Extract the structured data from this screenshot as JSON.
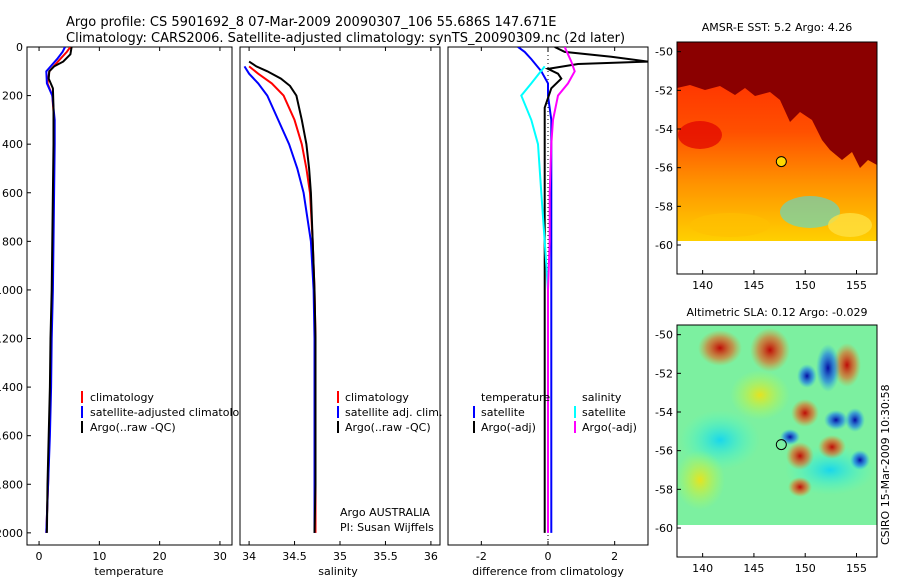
{
  "header": {
    "line1": "Argo profile: CS 5901692_8 07-Mar-2009 20090307_106 55.686S 147.671E",
    "line2": "Climatology: CARS2006. Satellite-adjusted climatology: synTS_20090309.nc (2d later)"
  },
  "side_stamp": "CSIRO 15-Mar-2009 10:30:58",
  "colors": {
    "climatology": "#ff0000",
    "satellite": "#0000ff",
    "argo": "#000000",
    "temp_satellite_diff": "#00ffff",
    "sal_satellite_diff": "#00ffff",
    "argo_adj_diff": "#ff00ff"
  },
  "chart_data": [
    {
      "id": "temperature-panel",
      "type": "line",
      "xlabel": "temperature",
      "ylabel": "",
      "xlim": [
        -2,
        32
      ],
      "ylim": [
        2050,
        0
      ],
      "xticks": [
        0,
        10,
        20,
        30
      ],
      "yticks": [
        0,
        200,
        400,
        600,
        800,
        1000,
        1200,
        1400,
        1600,
        1800,
        2000
      ],
      "legend": {
        "placement": "lower-right",
        "entries": [
          "climatology",
          "satellite-adjusted climatology",
          "Argo(..raw -QC)"
        ]
      },
      "series": [
        {
          "name": "climatology",
          "color": "#ff0000",
          "points": [
            [
              5.2,
              0
            ],
            [
              4.6,
              20
            ],
            [
              3.5,
              50
            ],
            [
              1.7,
              100
            ],
            [
              1.4,
              150
            ],
            [
              2.2,
              200
            ],
            [
              2.5,
              300
            ],
            [
              2.5,
              400
            ],
            [
              2.4,
              600
            ],
            [
              2.3,
              800
            ],
            [
              2.2,
              1000
            ],
            [
              2.0,
              1200
            ],
            [
              1.9,
              1400
            ],
            [
              1.7,
              1600
            ],
            [
              1.5,
              1800
            ],
            [
              1.2,
              2000
            ]
          ]
        },
        {
          "name": "satellite-adjusted climatology",
          "color": "#0000ff",
          "points": [
            [
              4.3,
              0
            ],
            [
              3.9,
              20
            ],
            [
              3.0,
              50
            ],
            [
              1.2,
              100
            ],
            [
              1.3,
              150
            ],
            [
              2.2,
              200
            ],
            [
              2.6,
              300
            ],
            [
              2.6,
              400
            ],
            [
              2.5,
              600
            ],
            [
              2.4,
              800
            ],
            [
              2.3,
              1000
            ],
            [
              2.1,
              1200
            ],
            [
              2.0,
              1400
            ],
            [
              1.8,
              1600
            ],
            [
              1.5,
              1800
            ],
            [
              1.2,
              2000
            ]
          ]
        },
        {
          "name": "Argo(..raw -QC)",
          "color": "#000000",
          "points": [
            [
              5.4,
              0
            ],
            [
              5.2,
              30
            ],
            [
              4.0,
              60
            ],
            [
              2.5,
              80
            ],
            [
              1.7,
              100
            ],
            [
              1.6,
              130
            ],
            [
              2.3,
              170
            ],
            [
              2.4,
              250
            ],
            [
              2.4,
              400
            ],
            [
              2.3,
              600
            ],
            [
              2.2,
              800
            ],
            [
              2.1,
              1000
            ],
            [
              1.9,
              1200
            ],
            [
              1.8,
              1400
            ],
            [
              1.6,
              1600
            ],
            [
              1.4,
              1800
            ],
            [
              1.3,
              2000
            ]
          ]
        }
      ]
    },
    {
      "id": "salinity-panel",
      "type": "line",
      "xlabel": "salinity",
      "ylabel": "",
      "xlim": [
        33.9,
        36.1
      ],
      "ylim": [
        2050,
        0
      ],
      "xticks": [
        34,
        34.5,
        35,
        35.5,
        36
      ],
      "yticks": [],
      "legend": {
        "placement": "lower-right",
        "entries": [
          "climatology",
          "satellite adj. clim.",
          "Argo(..raw -QC)"
        ]
      },
      "annotations": [
        "Argo AUSTRALIA",
        "PI: Susan Wijffels"
      ],
      "series": [
        {
          "name": "climatology",
          "color": "#ff0000",
          "points": [
            [
              34.0,
              80
            ],
            [
              34.1,
              110
            ],
            [
              34.25,
              150
            ],
            [
              34.38,
              200
            ],
            [
              34.5,
              300
            ],
            [
              34.58,
              400
            ],
            [
              34.63,
              500
            ],
            [
              34.67,
              600
            ],
            [
              34.7,
              800
            ],
            [
              34.72,
              1000
            ],
            [
              34.73,
              1200
            ],
            [
              34.73,
              1400
            ],
            [
              34.73,
              1600
            ],
            [
              34.73,
              1800
            ],
            [
              34.73,
              2000
            ]
          ]
        },
        {
          "name": "satellite adj. clim.",
          "color": "#0000ff",
          "points": [
            [
              33.95,
              80
            ],
            [
              34.0,
              110
            ],
            [
              34.1,
              150
            ],
            [
              34.2,
              200
            ],
            [
              34.32,
              300
            ],
            [
              34.44,
              400
            ],
            [
              34.53,
              500
            ],
            [
              34.6,
              600
            ],
            [
              34.68,
              800
            ],
            [
              34.71,
              1000
            ],
            [
              34.72,
              1200
            ],
            [
              34.72,
              1400
            ],
            [
              34.72,
              1600
            ],
            [
              34.72,
              1800
            ],
            [
              34.72,
              2000
            ]
          ]
        },
        {
          "name": "Argo(..raw -QC)",
          "color": "#000000",
          "points": [
            [
              34.0,
              60
            ],
            [
              34.08,
              80
            ],
            [
              34.2,
              100
            ],
            [
              34.35,
              130
            ],
            [
              34.45,
              160
            ],
            [
              34.52,
              200
            ],
            [
              34.58,
              300
            ],
            [
              34.63,
              400
            ],
            [
              34.66,
              500
            ],
            [
              34.68,
              600
            ],
            [
              34.7,
              800
            ],
            [
              34.72,
              1000
            ],
            [
              34.73,
              1200
            ],
            [
              34.73,
              1400
            ],
            [
              34.73,
              1600
            ],
            [
              34.73,
              1800
            ],
            [
              34.72,
              2000
            ]
          ]
        }
      ]
    },
    {
      "id": "difference-panel",
      "type": "line",
      "xlabel": "difference from climatology",
      "ylabel": "",
      "xlim": [
        -3,
        3
      ],
      "ylim": [
        2050,
        0
      ],
      "xticks": [
        -2,
        0,
        2
      ],
      "yticks": [],
      "legend": {
        "placement": "lower-center",
        "columns": [
          {
            "header": "temperature",
            "entries": [
              "satellite",
              "Argo(-adj)"
            ]
          },
          {
            "header": "salinity",
            "entries": [
              "satellite",
              "Argo(-adj)"
            ]
          }
        ]
      },
      "series": [
        {
          "name": "temperature satellite",
          "color": "#0000ff",
          "points": [
            [
              -0.9,
              0
            ],
            [
              -0.7,
              20
            ],
            [
              -0.5,
              50
            ],
            [
              -0.2,
              100
            ],
            [
              0.0,
              150
            ],
            [
              0.0,
              200
            ],
            [
              0.1,
              300
            ],
            [
              0.1,
              400
            ],
            [
              0.1,
              600
            ],
            [
              0.1,
              800
            ],
            [
              0.1,
              1000
            ],
            [
              0.1,
              1200
            ],
            [
              0.1,
              1400
            ],
            [
              0.1,
              1600
            ],
            [
              0.1,
              1800
            ],
            [
              0.1,
              2000
            ]
          ]
        },
        {
          "name": "temperature Argo(-adj)",
          "color": "#000000",
          "points": [
            [
              0.2,
              0
            ],
            [
              0.5,
              20
            ],
            [
              1.9,
              40
            ],
            [
              3.0,
              60
            ],
            [
              0.9,
              70
            ],
            [
              0.0,
              90
            ],
            [
              0.3,
              110
            ],
            [
              0.4,
              130
            ],
            [
              0.1,
              170
            ],
            [
              -0.1,
              250
            ],
            [
              -0.1,
              400
            ],
            [
              -0.1,
              600
            ],
            [
              -0.1,
              800
            ],
            [
              -0.1,
              1000
            ],
            [
              -0.1,
              1200
            ],
            [
              -0.1,
              1400
            ],
            [
              -0.1,
              1600
            ],
            [
              -0.1,
              1800
            ],
            [
              -0.1,
              2000
            ]
          ]
        },
        {
          "name": "salinity satellite",
          "color": "#00ffff",
          "points": [
            [
              -0.1,
              80
            ],
            [
              -0.5,
              150
            ],
            [
              -0.8,
              200
            ],
            [
              -0.5,
              300
            ],
            [
              -0.3,
              400
            ],
            [
              -0.2,
              600
            ],
            [
              -0.1,
              800
            ],
            [
              0.0,
              1000
            ],
            [
              0.0,
              1200
            ],
            [
              0.0,
              1400
            ],
            [
              0.0,
              1600
            ],
            [
              0.0,
              1800
            ],
            [
              0.0,
              2000
            ]
          ]
        },
        {
          "name": "salinity Argo(-adj)",
          "color": "#ff00ff",
          "points": [
            [
              0.5,
              0
            ],
            [
              0.6,
              30
            ],
            [
              0.7,
              60
            ],
            [
              0.8,
              100
            ],
            [
              0.6,
              150
            ],
            [
              0.3,
              200
            ],
            [
              0.15,
              300
            ],
            [
              0.1,
              400
            ],
            [
              0.05,
              600
            ],
            [
              0.05,
              800
            ],
            [
              0.0,
              1000
            ],
            [
              0.0,
              1200
            ],
            [
              0.0,
              1400
            ],
            [
              0.0,
              1600
            ],
            [
              0.0,
              1800
            ],
            [
              0.0,
              2000
            ]
          ]
        }
      ]
    },
    {
      "id": "sst-map",
      "type": "heatmap",
      "title": "AMSR-E SST: 5.2 Argo: 4.26",
      "xlim": [
        137.5,
        157
      ],
      "ylim": [
        -61.5,
        -49.5
      ],
      "xticks": [
        140,
        145,
        150,
        155
      ],
      "yticks": [
        -50,
        -52,
        -54,
        -56,
        -58,
        -60
      ],
      "data_extent": {
        "lon": [
          137.5,
          157
        ],
        "lat": [
          -60,
          -49.5
        ]
      },
      "marker": {
        "lon": 147.671,
        "lat": -55.686,
        "fill": "#ffd700"
      }
    },
    {
      "id": "sla-map",
      "type": "heatmap",
      "title": "Altimetric SLA: 0.12 Argo: -0.029",
      "xlim": [
        137.5,
        157
      ],
      "ylim": [
        -61.5,
        -49.5
      ],
      "xticks": [
        140,
        145,
        150,
        155
      ],
      "yticks": [
        -50,
        -52,
        -54,
        -56,
        -58,
        -60
      ],
      "data_extent": {
        "lon": [
          137.5,
          157
        ],
        "lat": [
          -60,
          -49.5
        ]
      },
      "marker": {
        "lon": 147.671,
        "lat": -55.686,
        "fill": "none"
      }
    }
  ]
}
